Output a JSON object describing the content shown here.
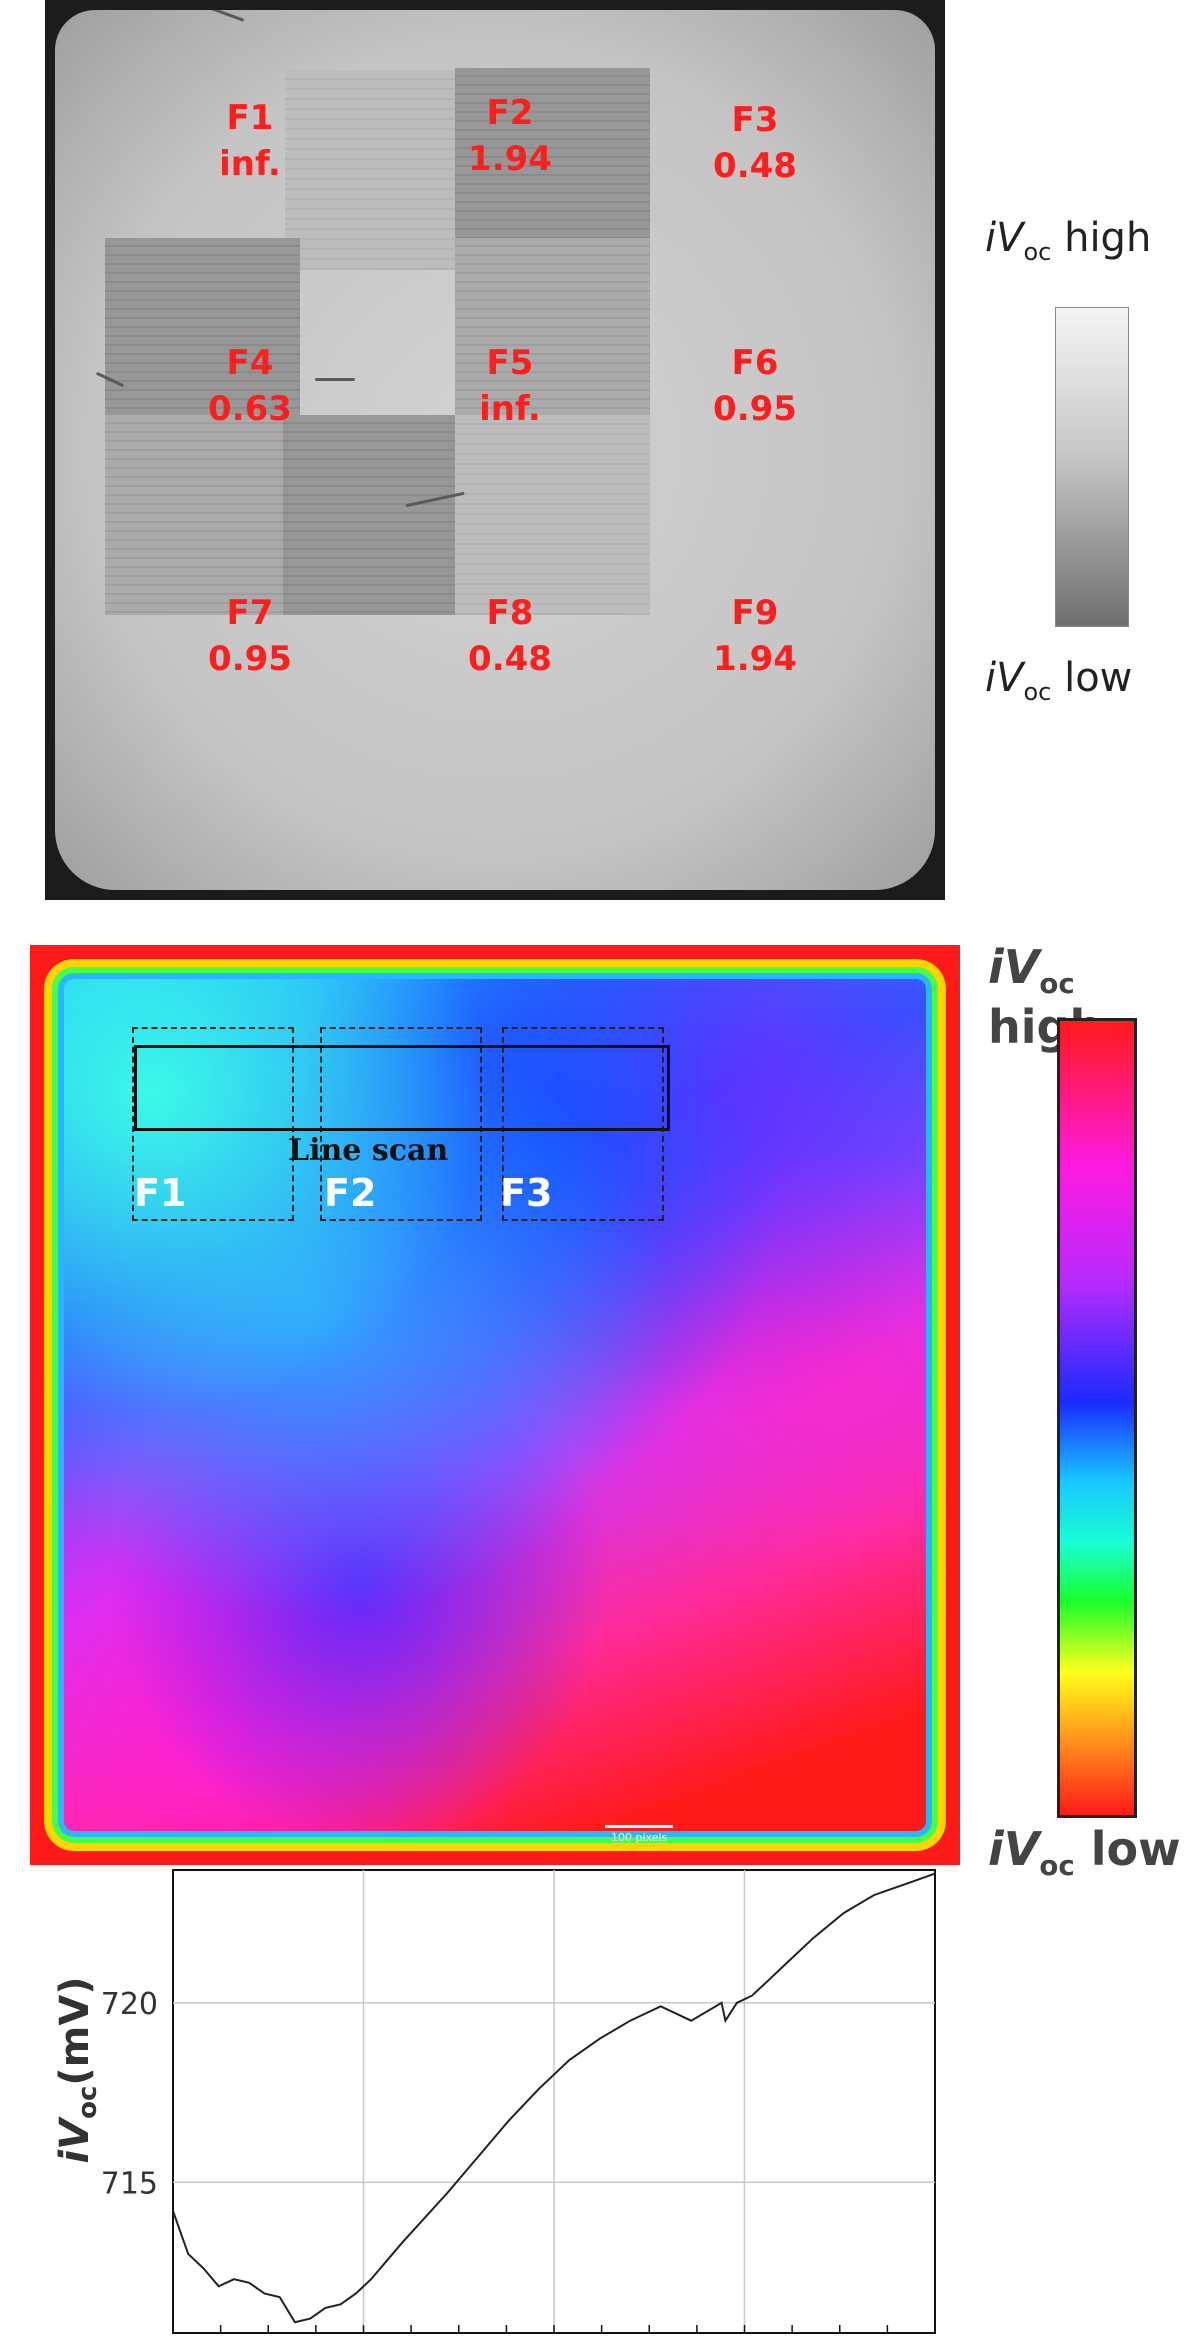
{
  "panel_a": {
    "fields": [
      {
        "name": "F1",
        "value": "inf."
      },
      {
        "name": "F2",
        "value": "1.94"
      },
      {
        "name": "F3",
        "value": "0.48"
      },
      {
        "name": "F4",
        "value": "0.63"
      },
      {
        "name": "F5",
        "value": "inf."
      },
      {
        "name": "F6",
        "value": "0.95"
      },
      {
        "name": "F7",
        "value": "0.95"
      },
      {
        "name": "F8",
        "value": "0.48"
      },
      {
        "name": "F9",
        "value": "1.94"
      }
    ],
    "legend": {
      "symbol": "iV",
      "subscript": "oc",
      "high": "high",
      "low": "low"
    }
  },
  "panel_b": {
    "fields": [
      "F1",
      "F2",
      "F3"
    ],
    "line_scan_label": "Line scan",
    "scale_bar_label": "100 pixels",
    "legend": {
      "symbol": "iV",
      "subscript": "oc",
      "high": "high",
      "low": "low"
    }
  },
  "chart_data": {
    "type": "line",
    "xlabel": "",
    "ylabel": "iVoc (mV)",
    "ylabel_symbol": "iV",
    "ylabel_subscript": "oc",
    "ylabel_unit": "(mV)",
    "yticks": [
      715,
      720
    ],
    "ylim": [
      710.8,
      723.7
    ],
    "xlim": [
      0,
      100
    ],
    "grid": true,
    "series": [
      {
        "x": [
          0,
          2,
          4,
          6,
          8,
          10,
          12,
          14,
          16,
          18,
          20,
          22,
          24,
          26,
          28,
          30,
          33,
          36,
          40,
          44,
          48,
          52,
          56,
          60,
          64,
          68,
          72,
          72.5,
          74,
          76,
          78,
          80,
          84,
          88,
          92,
          96,
          100
        ],
        "y": [
          714.2,
          713.0,
          712.6,
          712.1,
          712.3,
          712.2,
          711.9,
          711.8,
          711.1,
          711.2,
          711.5,
          711.6,
          711.9,
          712.3,
          712.8,
          713.3,
          714.0,
          714.7,
          715.7,
          716.7,
          717.6,
          718.4,
          719.0,
          719.5,
          719.9,
          719.5,
          720.0,
          719.5,
          720.0,
          720.2,
          720.6,
          721.0,
          721.8,
          722.5,
          723.0,
          723.3,
          723.6
        ]
      }
    ]
  }
}
